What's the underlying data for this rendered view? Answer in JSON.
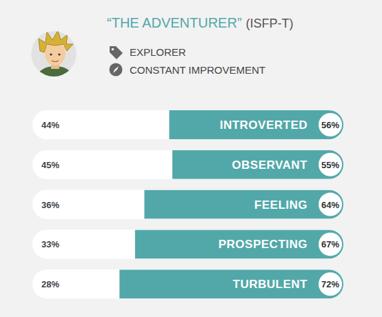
{
  "chart_data": {
    "type": "bar",
    "orientation": "horizontal",
    "stacked": true,
    "title": "“THE ADVENTURER”",
    "subtitle": "(ISFP-T)",
    "annotations": [
      "EXPLORER",
      "CONSTANT IMPROVEMENT"
    ],
    "categories": [
      "INTROVERTED",
      "OBSERVANT",
      "FEELING",
      "PROSPECTING",
      "TURBULENT"
    ],
    "series": [
      {
        "color": "#ffffff",
        "values": [
          44,
          45,
          36,
          33,
          28
        ],
        "value_labels": [
          "44%",
          "45%",
          "36%",
          "33%",
          "28%"
        ]
      },
      {
        "color": "#52a8a9",
        "values": [
          56,
          55,
          64,
          67,
          72
        ],
        "value_labels": [
          "56%",
          "55%",
          "64%",
          "67%",
          "72%"
        ]
      }
    ],
    "xlim": [
      0,
      100
    ],
    "tick_labels": false,
    "data_labels": true
  }
}
